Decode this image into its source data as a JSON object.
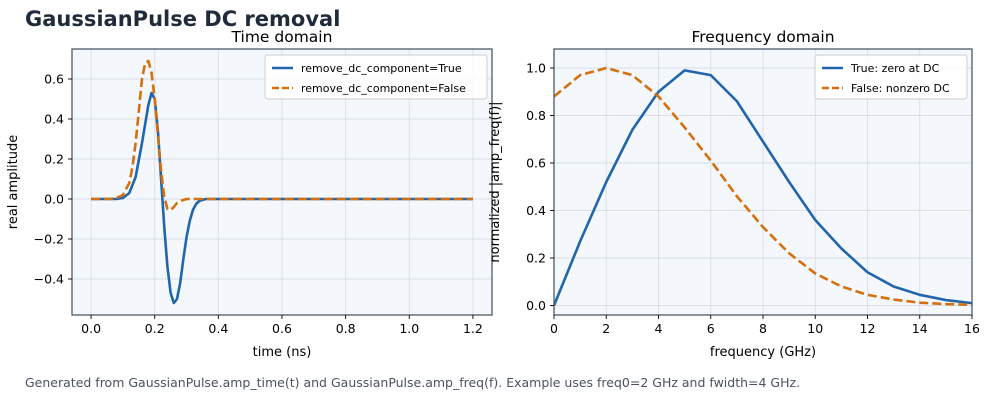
{
  "figure": {
    "title": "GaussianPulse DC removal",
    "caption": "Generated from GaussianPulse.amp_time(t) and GaussianPulse.amp_freq(f). Example uses freq0=2 GHz and fwidth=4 GHz."
  },
  "colors": {
    "true_series": "#2166ac",
    "false_series": "#d4700d",
    "axes_bg": "#f4f7fb",
    "grid": "#d9dee8",
    "spine": "#4a5a6a"
  },
  "chart_data": [
    {
      "type": "line",
      "title": "Time domain",
      "xlabel": "time (ns)",
      "ylabel": "real amplitude",
      "xlim": [
        -0.06,
        1.26
      ],
      "ylim": [
        -0.58,
        0.75
      ],
      "xticks": [
        0.0,
        0.2,
        0.4,
        0.6,
        0.8,
        1.0,
        1.2
      ],
      "xtick_labels": [
        "0.0",
        "0.2",
        "0.4",
        "0.6",
        "0.8",
        "1.0",
        "1.2"
      ],
      "yticks": [
        -0.4,
        -0.2,
        0.0,
        0.2,
        0.4,
        0.6
      ],
      "ytick_labels": [
        "−0.4",
        "−0.2",
        "0.0",
        "0.2",
        "0.4",
        "0.6"
      ],
      "grid": true,
      "legend": "top-right",
      "series": [
        {
          "name": "remove_dc_component=True",
          "style": "solid",
          "x": [
            0.0,
            0.08,
            0.1,
            0.12,
            0.14,
            0.16,
            0.18,
            0.19,
            0.2,
            0.21,
            0.22,
            0.23,
            0.24,
            0.25,
            0.26,
            0.27,
            0.28,
            0.29,
            0.3,
            0.31,
            0.32,
            0.33,
            0.34,
            0.36,
            0.4,
            1.2
          ],
          "y": [
            0.0,
            0.0,
            0.005,
            0.03,
            0.11,
            0.28,
            0.47,
            0.53,
            0.5,
            0.34,
            0.1,
            -0.14,
            -0.34,
            -0.47,
            -0.52,
            -0.5,
            -0.42,
            -0.3,
            -0.19,
            -0.11,
            -0.055,
            -0.025,
            -0.01,
            0.0,
            0.0,
            0.0
          ]
        },
        {
          "name": "remove_dc_component=False",
          "style": "dashed",
          "x": [
            0.0,
            0.06,
            0.08,
            0.1,
            0.12,
            0.13,
            0.14,
            0.15,
            0.16,
            0.17,
            0.18,
            0.19,
            0.2,
            0.21,
            0.22,
            0.23,
            0.24,
            0.25,
            0.26,
            0.27,
            0.28,
            0.29,
            0.3,
            0.32,
            0.34,
            0.4,
            1.2
          ],
          "y": [
            0.0,
            0.0,
            0.005,
            0.02,
            0.08,
            0.16,
            0.28,
            0.44,
            0.6,
            0.68,
            0.69,
            0.63,
            0.5,
            0.32,
            0.14,
            0.01,
            -0.05,
            -0.055,
            -0.04,
            -0.02,
            -0.01,
            -0.005,
            0.0,
            0.0,
            0.0,
            0.0,
            0.0
          ]
        }
      ]
    },
    {
      "type": "line",
      "title": "Frequency domain",
      "xlabel": "frequency (GHz)",
      "ylabel": "normalized |amp_freq(f)|",
      "xlim": [
        0,
        16
      ],
      "ylim": [
        -0.04,
        1.08
      ],
      "xticks": [
        0,
        2,
        4,
        6,
        8,
        10,
        12,
        14,
        16
      ],
      "xtick_labels": [
        "0",
        "2",
        "4",
        "6",
        "8",
        "10",
        "12",
        "14",
        "16"
      ],
      "yticks": [
        0.0,
        0.2,
        0.4,
        0.6,
        0.8,
        1.0
      ],
      "ytick_labels": [
        "0.0",
        "0.2",
        "0.4",
        "0.6",
        "0.8",
        "1.0"
      ],
      "grid": true,
      "legend": "top-right",
      "series": [
        {
          "name": "True: zero at DC",
          "style": "solid",
          "x": [
            0,
            1,
            2,
            3,
            4,
            5,
            6,
            7,
            8,
            9,
            10,
            11,
            12,
            13,
            14,
            15,
            16
          ],
          "y": [
            0.0,
            0.27,
            0.52,
            0.74,
            0.9,
            0.99,
            0.97,
            0.86,
            0.69,
            0.52,
            0.36,
            0.24,
            0.14,
            0.08,
            0.045,
            0.023,
            0.01
          ]
        },
        {
          "name": "False: nonzero DC",
          "style": "dashed",
          "x": [
            0,
            1,
            2,
            3,
            4,
            5,
            6,
            7,
            8,
            9,
            10,
            11,
            12,
            13,
            14,
            15,
            16
          ],
          "y": [
            0.88,
            0.97,
            1.0,
            0.97,
            0.88,
            0.75,
            0.61,
            0.46,
            0.33,
            0.22,
            0.135,
            0.08,
            0.045,
            0.025,
            0.012,
            0.006,
            0.003
          ]
        }
      ]
    }
  ]
}
